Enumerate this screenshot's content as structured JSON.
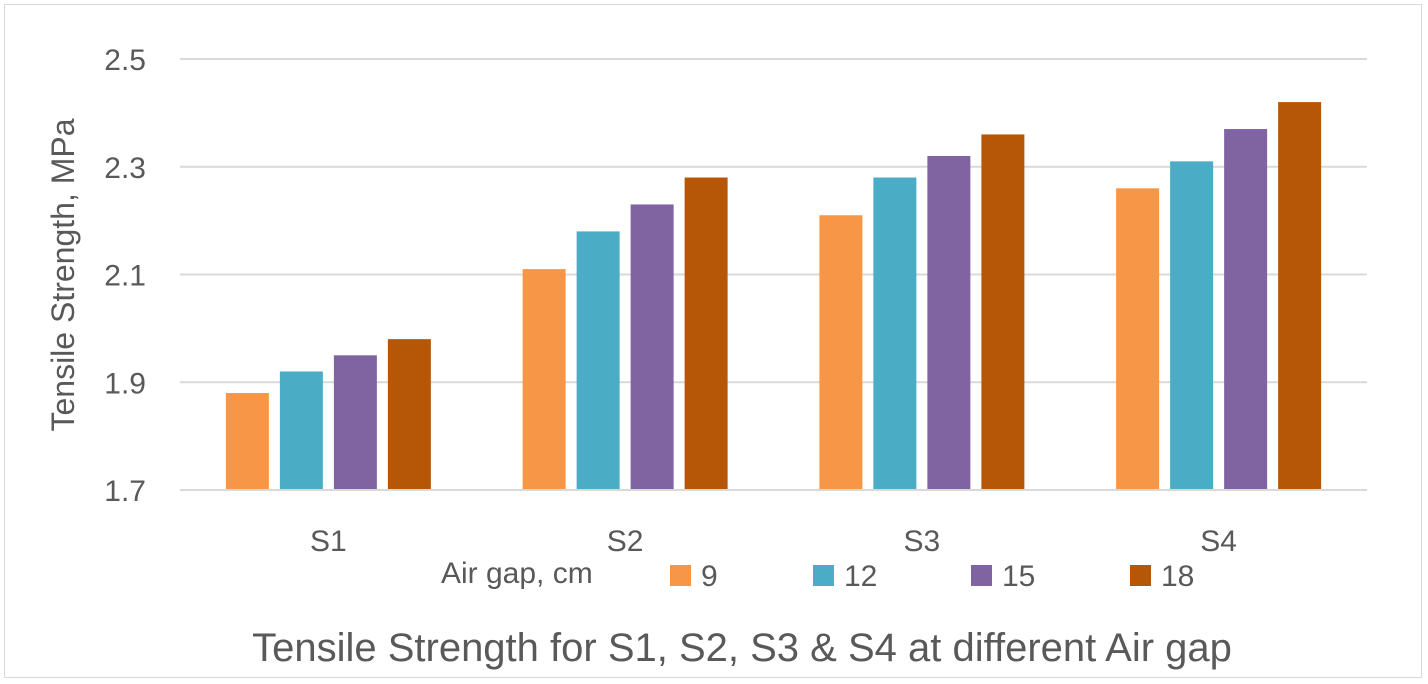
{
  "chart_data": {
    "type": "bar",
    "title": "Tensile Strength for S1, S2, S3 & S4 at different Air gap",
    "xlabel": "",
    "ylabel": "Tensile Strength, MPa",
    "ylim": [
      1.7,
      2.5
    ],
    "yticks": [
      "1.7",
      "1.9",
      "2.1",
      "2.3",
      "2.5"
    ],
    "grid": true,
    "legend_title": "Air gap, cm",
    "legend_position": "bottom",
    "categories": [
      "S1",
      "S2",
      "S3",
      "S4"
    ],
    "series": [
      {
        "name": "9",
        "color": "#f79646",
        "values": [
          1.88,
          2.11,
          2.21,
          2.26
        ]
      },
      {
        "name": "12",
        "color": "#4bacc6",
        "values": [
          1.92,
          2.18,
          2.28,
          2.31
        ]
      },
      {
        "name": "15",
        "color": "#8064a2",
        "values": [
          1.95,
          2.23,
          2.32,
          2.37
        ]
      },
      {
        "name": "18",
        "color": "#b65708",
        "values": [
          1.98,
          2.28,
          2.36,
          2.42
        ]
      }
    ]
  }
}
